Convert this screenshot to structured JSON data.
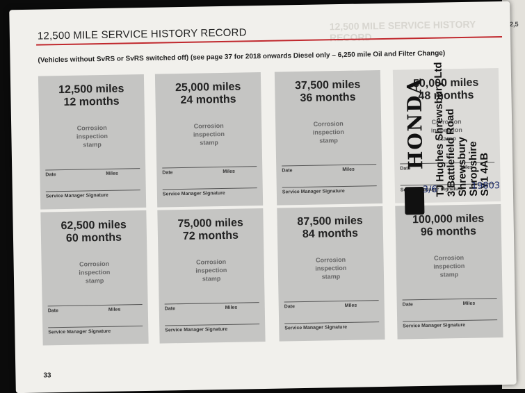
{
  "header": {
    "title": "12,500 MILE SERVICE HISTORY RECORD",
    "subtitle": "(Vehicles without SvRS or SvRS switched off) (see page 37 for 2018 onwards Diesel only – 6,250 mile Oil and Filter Change)"
  },
  "labels": {
    "stamp": "Corrosion\ninspection\nstamp",
    "date": "Date",
    "miles": "Miles",
    "signature": "Service Manager Signature"
  },
  "cards": [
    {
      "miles": "12,500 miles",
      "months": "12 months"
    },
    {
      "miles": "25,000 miles",
      "months": "24 months"
    },
    {
      "miles": "37,500 miles",
      "months": "36 months"
    },
    {
      "miles": "50,000 miles",
      "months": "48 months"
    },
    {
      "miles": "62,500 miles",
      "months": "60 months"
    },
    {
      "miles": "75,000 miles",
      "months": "72 months"
    },
    {
      "miles": "87,500 miles",
      "months": "84 months"
    },
    {
      "miles": "100,000 miles",
      "months": "96 months"
    }
  ],
  "dealer_stamp": {
    "brand": "HONDA",
    "text": "TJ Hughes Shrewsbury Ltd\n3 Battlefield Road\nShrewsbury\nShropshire\nSY1 4AB"
  },
  "handwritten": {
    "date": "3/6",
    "miles": "19803"
  },
  "page_number": "33",
  "colors": {
    "accent_rule": "#c0282d",
    "card": "#c5c5c3",
    "page": "#f1f0ec"
  }
}
